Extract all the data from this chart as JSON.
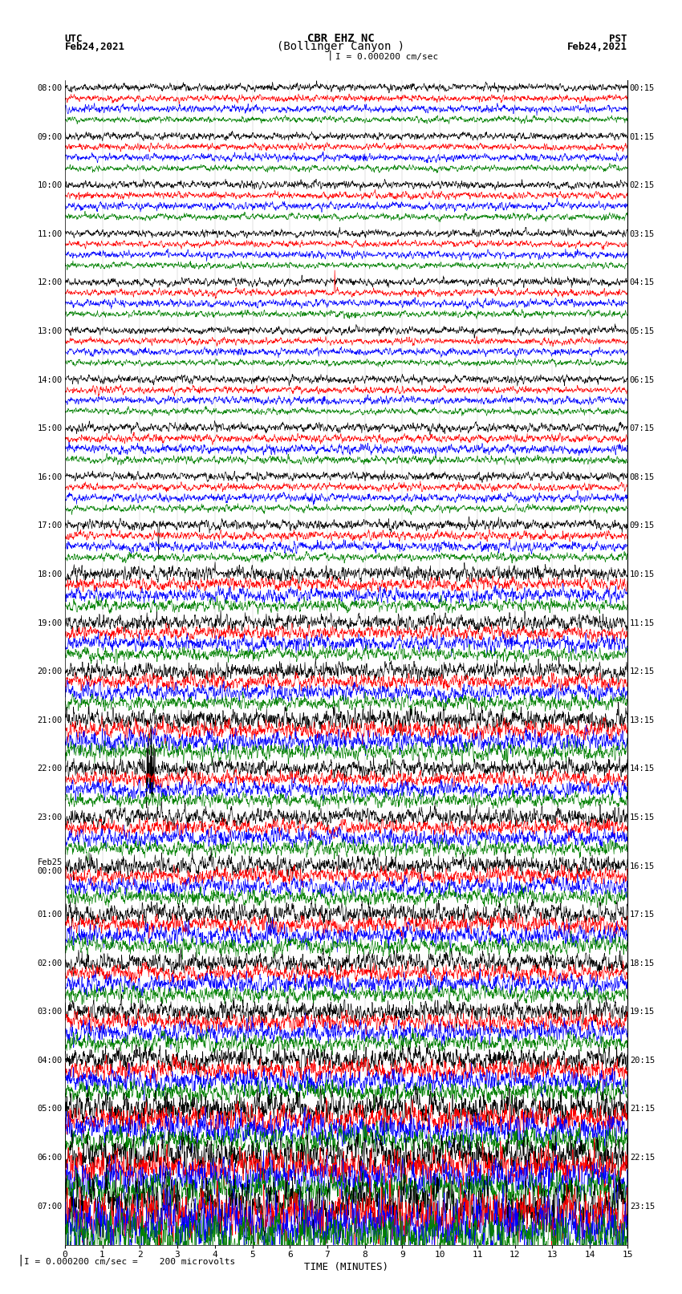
{
  "title_line1": "CBR EHZ NC",
  "title_line2": "(Bollinger Canyon )",
  "title_scale": "I = 0.000200 cm/sec",
  "left_label_line1": "UTC",
  "left_label_line2": "Feb24,2021",
  "right_label_line1": "PST",
  "right_label_line2": "Feb24,2021",
  "xlabel": "TIME (MINUTES)",
  "footer": "I = 0.000200 cm/sec =    200 microvolts",
  "utc_times": [
    "08:00",
    "09:00",
    "10:00",
    "11:00",
    "12:00",
    "13:00",
    "14:00",
    "15:00",
    "16:00",
    "17:00",
    "18:00",
    "19:00",
    "20:00",
    "21:00",
    "22:00",
    "23:00",
    "Feb25\n00:00",
    "01:00",
    "02:00",
    "03:00",
    "04:00",
    "05:00",
    "06:00",
    "07:00"
  ],
  "pst_times": [
    "00:15",
    "01:15",
    "02:15",
    "03:15",
    "04:15",
    "05:15",
    "06:15",
    "07:15",
    "08:15",
    "09:15",
    "10:15",
    "11:15",
    "12:15",
    "13:15",
    "14:15",
    "15:15",
    "16:15",
    "17:15",
    "18:15",
    "19:15",
    "20:15",
    "21:15",
    "22:15",
    "23:15"
  ],
  "colors": [
    "black",
    "red",
    "blue",
    "green"
  ],
  "n_rows": 24,
  "n_traces_per_row": 4,
  "xmin": 0,
  "xmax": 15,
  "xticks": [
    0,
    1,
    2,
    3,
    4,
    5,
    6,
    7,
    8,
    9,
    10,
    11,
    12,
    13,
    14,
    15
  ],
  "bg_color": "#ffffff",
  "seed": 42,
  "row_amplitudes": [
    0.28,
    0.28,
    0.3,
    0.28,
    0.3,
    0.28,
    0.3,
    0.35,
    0.32,
    0.38,
    0.55,
    0.6,
    0.65,
    0.8,
    0.65,
    0.7,
    0.72,
    0.8,
    0.75,
    0.8,
    0.9,
    1.2,
    1.5,
    2.2
  ],
  "trace_amp_scale": [
    1.0,
    0.9,
    1.0,
    0.85
  ]
}
